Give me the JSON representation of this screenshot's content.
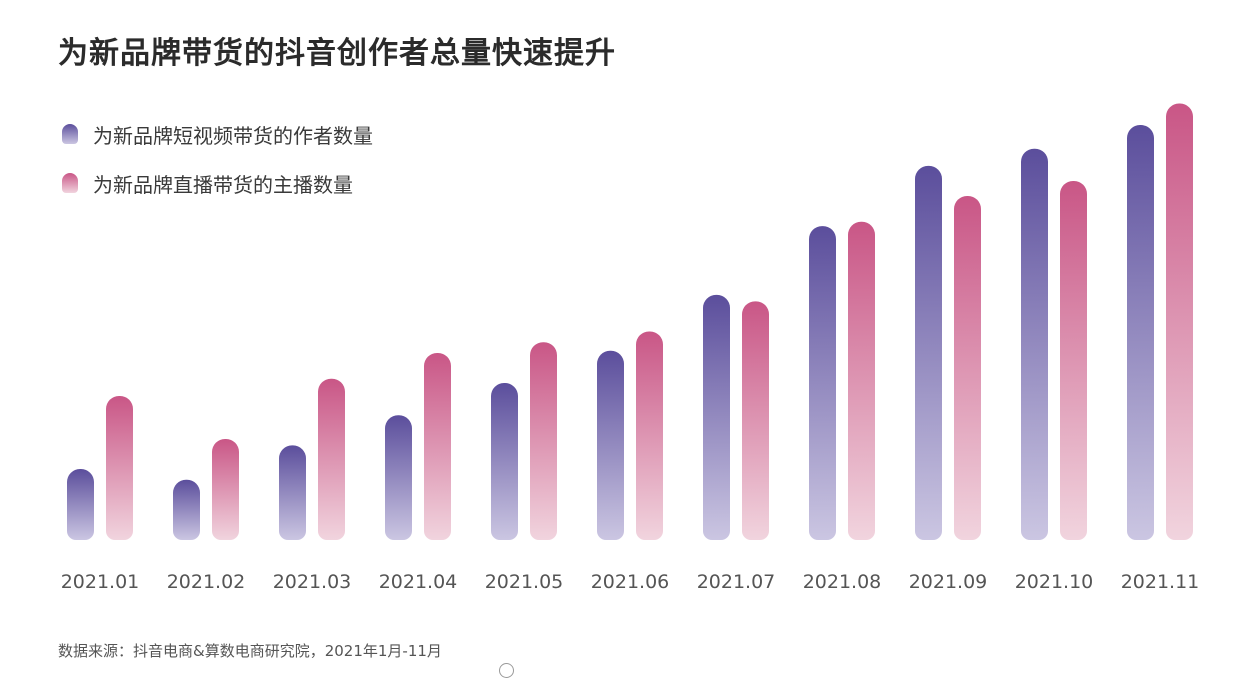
{
  "colors": {
    "series_1_top": "#5b4e9c",
    "series_1_bottom": "#cbc6e2",
    "series_2_top": "#c95686",
    "series_2_bottom": "#f1d4de",
    "tick_text": "#555555"
  },
  "chart_data": {
    "type": "bar",
    "title": "为新品牌带货的抖音创作者总量快速提升",
    "xlabel": "",
    "ylabel": "",
    "categories": [
      "2021.01",
      "2021.02",
      "2021.03",
      "2021.04",
      "2021.05",
      "2021.06",
      "2021.07",
      "2021.08",
      "2021.09",
      "2021.10",
      "2021.11"
    ],
    "series": [
      {
        "name": "为新品牌短视频带货的作者数量",
        "values": [
          16.5,
          14,
          22,
          29,
          36.5,
          44,
          57,
          73,
          87,
          91,
          96.5
        ]
      },
      {
        "name": "为新品牌直播带货的主播数量",
        "values": [
          33.5,
          23.5,
          37.5,
          43.5,
          46,
          48.5,
          55.5,
          74,
          80,
          83.5,
          101.5
        ]
      }
    ],
    "ylim": [
      0,
      100
    ],
    "grid": false,
    "axis_visible": false,
    "legend_position": "top-left",
    "source": "数据来源：抖音电商&算数电商研究院，2021年1月-11月"
  }
}
